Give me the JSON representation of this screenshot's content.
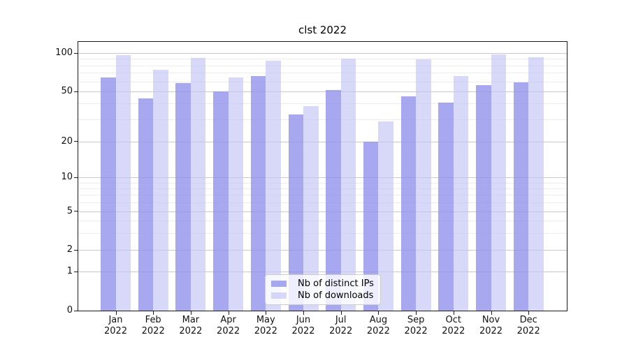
{
  "title": "clst 2022",
  "chart_data": {
    "type": "bar",
    "title": "clst 2022",
    "year": "2022",
    "categories": [
      "Jan 2022",
      "Feb 2022",
      "Mar 2022",
      "Apr 2022",
      "May 2022",
      "Jun 2022",
      "Jul 2022",
      "Aug 2022",
      "Sep 2022",
      "Oct 2022",
      "Nov 2022",
      "Dec 2022"
    ],
    "series": [
      {
        "name": "Nb of distinct IPs",
        "color": "rgba(146,146,236,0.8)",
        "values": [
          64,
          44,
          58,
          50,
          66,
          33,
          51,
          20,
          46,
          41,
          56,
          59
        ]
      },
      {
        "name": "Nb of downloads",
        "color": "rgba(195,195,244,0.65)",
        "values": [
          96,
          74,
          92,
          64,
          87,
          38,
          90,
          29,
          89,
          66,
          97,
          93
        ]
      }
    ],
    "xlabel": "",
    "ylabel": "",
    "yscale": "symlog",
    "yticks": [
      0,
      1,
      2,
      5,
      10,
      20,
      50,
      100
    ],
    "yticks_minor": [
      3,
      4,
      6,
      7,
      8,
      9,
      30,
      40,
      60,
      70,
      80,
      90
    ],
    "ylim": [
      0,
      120
    ],
    "grid": true,
    "legend_position": "lower center"
  },
  "colors": {
    "grid_major": "#c9c9c9",
    "grid_minor": "#ececec",
    "spine": "#1a1a1a",
    "text": "#111111",
    "background": "#ffffff"
  }
}
